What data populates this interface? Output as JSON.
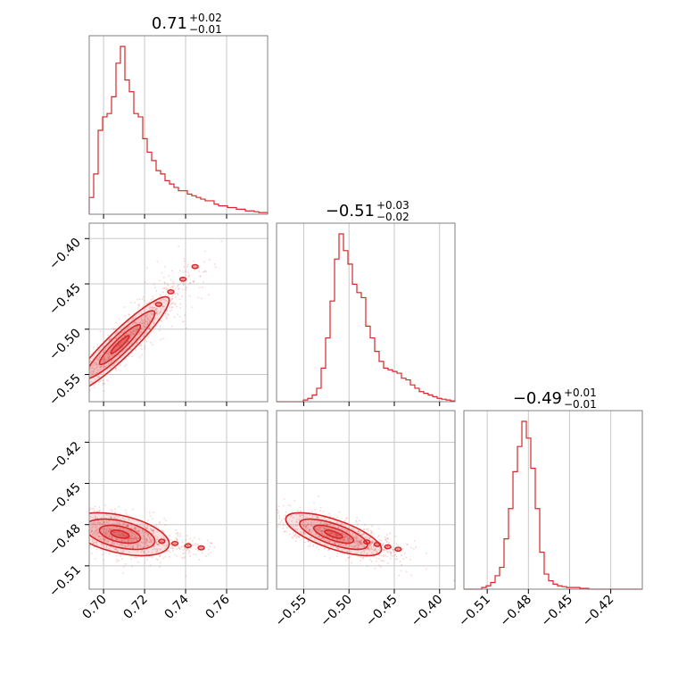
{
  "chart_data": {
    "type": "corner",
    "color": "#d62728",
    "params": [
      {
        "id": "p0",
        "range": [
          0.693,
          0.78
        ],
        "ticks": [
          0.7,
          0.72,
          0.74,
          0.76
        ],
        "tick_labels": [
          "0.70",
          "0.72",
          "0.74",
          "0.76"
        ],
        "title": {
          "median": "0.71",
          "plus": "+0.02",
          "minus": "−0.01"
        },
        "hist": [
          0.1,
          0.24,
          0.5,
          0.58,
          0.6,
          0.7,
          0.9,
          1.0,
          0.8,
          0.73,
          0.6,
          0.58,
          0.45,
          0.37,
          0.32,
          0.26,
          0.24,
          0.2,
          0.18,
          0.16,
          0.14,
          0.14,
          0.12,
          0.11,
          0.1,
          0.09,
          0.08,
          0.08,
          0.06,
          0.05,
          0.05,
          0.04,
          0.04,
          0.03,
          0.03,
          0.02,
          0.02,
          0.015,
          0.01,
          0.01
        ]
      },
      {
        "id": "p1",
        "range": [
          -0.58,
          -0.383
        ],
        "ticks": [
          -0.55,
          -0.5,
          -0.45,
          -0.4
        ],
        "tick_labels": [
          "−0.55",
          "−0.50",
          "−0.45",
          "−0.40"
        ],
        "title": {
          "median": "−0.51",
          "plus": "+0.03",
          "minus": "−0.02"
        },
        "hist": [
          0,
          0,
          0,
          0,
          0,
          0,
          0.01,
          0.02,
          0.04,
          0.08,
          0.2,
          0.38,
          0.6,
          0.85,
          1.0,
          0.9,
          0.82,
          0.7,
          0.65,
          0.62,
          0.45,
          0.38,
          0.3,
          0.24,
          0.2,
          0.19,
          0.18,
          0.17,
          0.14,
          0.13,
          0.1,
          0.08,
          0.06,
          0.05,
          0.04,
          0.03,
          0.02,
          0.015,
          0.01,
          0.005
        ]
      },
      {
        "id": "p2",
        "range": [
          -0.527,
          -0.397
        ],
        "ticks": [
          -0.51,
          -0.48,
          -0.45,
          -0.42
        ],
        "tick_labels": [
          "−0.51",
          "−0.48",
          "−0.45",
          "−0.42"
        ],
        "title": {
          "median": "−0.49",
          "plus": "+0.01",
          "minus": "−0.01"
        },
        "hist": [
          0,
          0,
          0,
          0,
          0.01,
          0.02,
          0.04,
          0.08,
          0.13,
          0.3,
          0.48,
          0.7,
          0.85,
          1.0,
          0.9,
          0.72,
          0.48,
          0.22,
          0.09,
          0.05,
          0.03,
          0.02,
          0.015,
          0.01,
          0.01,
          0.01,
          0.005,
          0.005,
          0,
          0,
          0,
          0,
          0,
          0,
          0,
          0,
          0,
          0,
          0,
          0
        ]
      }
    ],
    "pairs": [
      {
        "x": "p0",
        "y": "p1",
        "center": [
          0.708,
          -0.517
        ],
        "sx": 0.01,
        "sy": 0.022,
        "rho": 0.93,
        "tail": [
          0.745,
          -0.43
        ],
        "n_points": 900
      },
      {
        "x": "p0",
        "y": "p2",
        "center": [
          0.708,
          -0.487
        ],
        "sx": 0.01,
        "sy": 0.0065,
        "rho": -0.45,
        "tail": [
          0.748,
          -0.497
        ],
        "n_points": 900
      },
      {
        "x": "p1",
        "y": "p2",
        "center": [
          -0.517,
          -0.487
        ],
        "sx": 0.022,
        "sy": 0.0065,
        "rho": -0.7,
        "tail": [
          -0.445,
          -0.498
        ],
        "n_points": 900
      }
    ]
  }
}
